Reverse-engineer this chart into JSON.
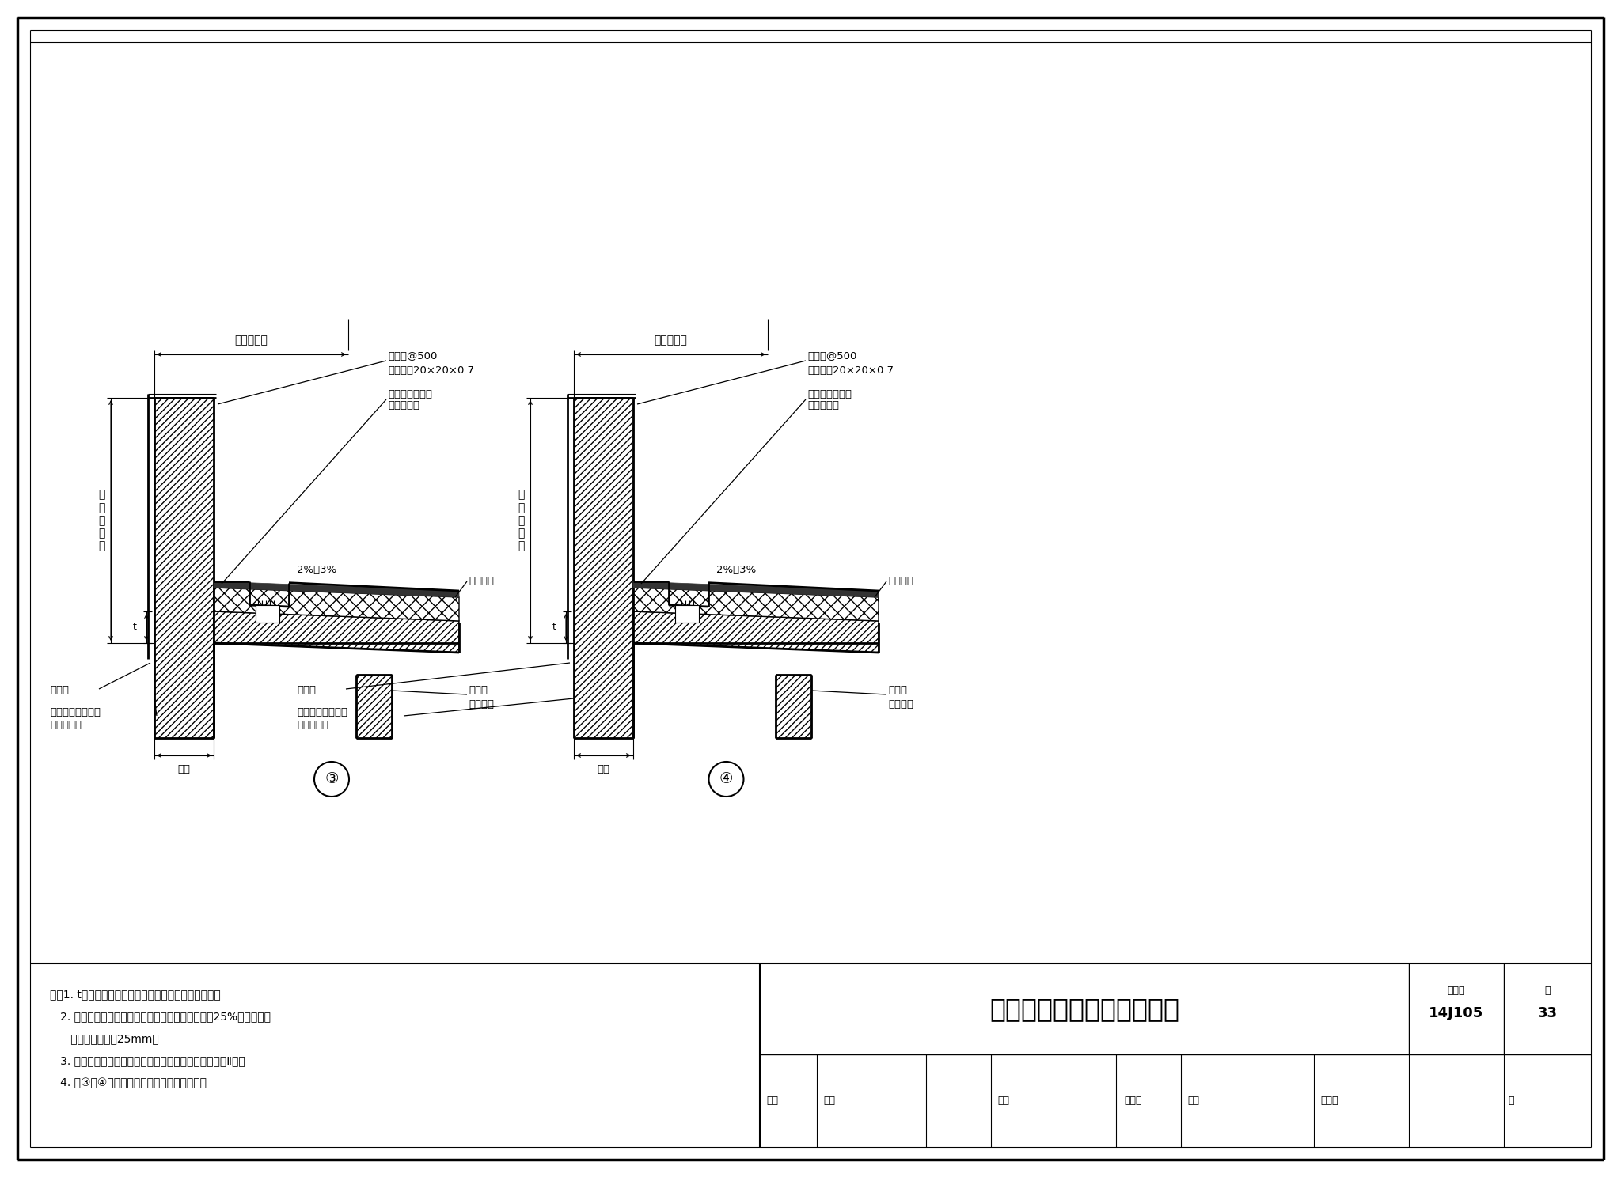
{
  "bg_color": "#ffffff",
  "title_text": "自保温墙体平屋面檐口构造",
  "atlas_no": "14J105",
  "page_no": "33",
  "notes_line1": "注：1. t为保温层厚度，可参考本图集热工性能表选用。",
  "notes_line2": "   2. 倒置式屋面保温层的设计厚度应按计算厚度增加25%取值，且最",
  "notes_line3": "      小厚度不得小于25mm。",
  "notes_line4": "   3. 夏热冬冷地区、夏热冬暖地区，推荐采用页岩空心砖Ⅱ型。",
  "notes_line5": "   4. 图③、④适用于热桥部位验算满足的情况。",
  "lbl_design": "按工程设计",
  "lbl_nail": "水泥钉@500",
  "lbl_gasket": "镀锌垫片20×20×0.7",
  "lbl_roof_ins": "屋面保温、防水",
  "lbl_roof_des": "按工程设计",
  "lbl_slope": "2%～3%",
  "lbl_roof_elev": "屋面标高",
  "lbl_column": "框架柱",
  "lbl_column2": "（全包）",
  "lbl_drain": "雨水口",
  "lbl_waterproof": "防水与外饰面做法",
  "lbl_waterproof2": "按工程设计",
  "lbl_wall_thick": "墙厚",
  "lbl_vertical": "按\n工\n程\n设\n计",
  "lbl_d3": "③",
  "lbl_d4": "④",
  "lbl_shenhe": "审核",
  "lbl_gbi": "葛壁",
  "lbl_jiaodui": "校对",
  "lbl_jinm": "金建明",
  "lbl_sheji": "设计",
  "lbl_liw": "李文鹃",
  "lbl_ye": "页",
  "lbl_tujihao": "图集号"
}
